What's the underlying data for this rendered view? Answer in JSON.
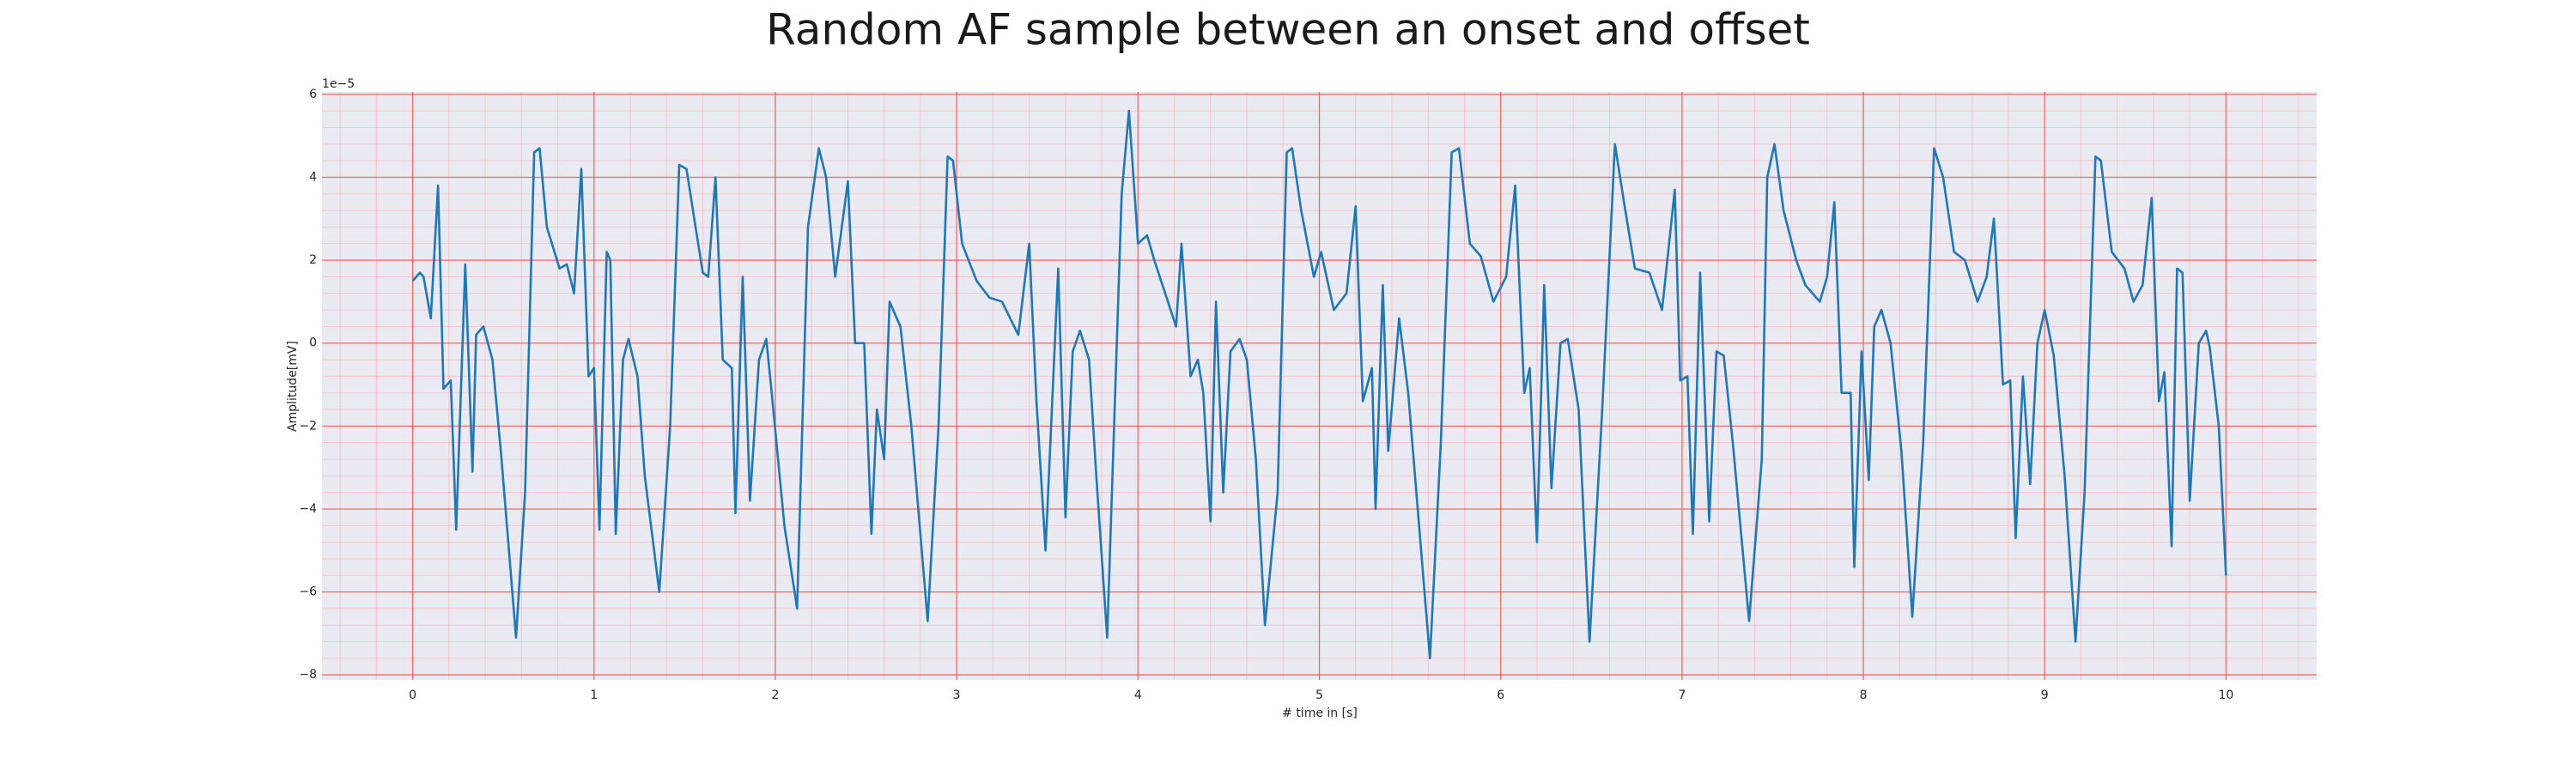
{
  "chart_data": {
    "type": "line",
    "title": "Random AF sample between an onset and offset",
    "x_label": "# time in [s]",
    "y_label": "Amplitude[mV]",
    "offset_text": "1e−5",
    "color": "#1f77b4",
    "grid": true,
    "minor_grid": true,
    "xlim": [
      -0.5,
      10.5
    ],
    "ylim": [
      -8.12,
      6.06
    ],
    "xticks": [
      0,
      1,
      2,
      3,
      4,
      5,
      6,
      7,
      8,
      9,
      10
    ],
    "yticks": [
      {
        "value": -8,
        "label": "−8"
      },
      {
        "value": -6,
        "label": "−6"
      },
      {
        "value": -4,
        "label": "−4"
      },
      {
        "value": -2,
        "label": "−2"
      },
      0,
      2,
      4,
      6
    ],
    "x": [
      0,
      0.04,
      0.06,
      0.1,
      0.14,
      0.17,
      0.21,
      0.24,
      0.29,
      0.33,
      0.35,
      0.39,
      0.44,
      0.49,
      0.57,
      0.62,
      0.67,
      0.7,
      0.74,
      0.81,
      0.85,
      0.89,
      0.93,
      0.97,
      1.0,
      1.03,
      1.07,
      1.09,
      1.12,
      1.16,
      1.19,
      1.24,
      1.28,
      1.36,
      1.42,
      1.47,
      1.51,
      1.56,
      1.6,
      1.63,
      1.67,
      1.71,
      1.76,
      1.78,
      1.82,
      1.86,
      1.91,
      1.95,
      1.98,
      2.05,
      2.12,
      2.18,
      2.24,
      2.28,
      2.33,
      2.4,
      2.44,
      2.49,
      2.53,
      2.56,
      2.6,
      2.63,
      2.69,
      2.75,
      2.84,
      2.9,
      2.95,
      2.98,
      3.03,
      3.11,
      3.18,
      3.25,
      3.34,
      3.4,
      3.44,
      3.49,
      3.56,
      3.6,
      3.64,
      3.68,
      3.73,
      3.77,
      3.83,
      3.91,
      3.95,
      4.0,
      4.05,
      4.09,
      4.15,
      4.21,
      4.24,
      4.29,
      4.33,
      4.36,
      4.4,
      4.43,
      4.47,
      4.51,
      4.56,
      4.6,
      4.65,
      4.7,
      4.77,
      4.82,
      4.85,
      4.9,
      4.97,
      5.01,
      5.08,
      5.15,
      5.2,
      5.24,
      5.29,
      5.31,
      5.35,
      5.38,
      5.44,
      5.49,
      5.55,
      5.61,
      5.67,
      5.73,
      5.77,
      5.83,
      5.89,
      5.96,
      6.03,
      6.08,
      6.13,
      6.16,
      6.2,
      6.24,
      6.28,
      6.33,
      6.37,
      6.43,
      6.49,
      6.56,
      6.63,
      6.68,
      6.74,
      6.82,
      6.89,
      6.96,
      6.99,
      7.03,
      7.06,
      7.1,
      7.15,
      7.19,
      7.23,
      7.28,
      7.37,
      7.44,
      7.47,
      7.51,
      7.56,
      7.63,
      7.68,
      7.76,
      7.8,
      7.84,
      7.88,
      7.93,
      7.95,
      7.99,
      8.03,
      8.06,
      8.1,
      8.15,
      8.21,
      8.27,
      8.33,
      8.39,
      8.44,
      8.5,
      8.56,
      8.63,
      8.68,
      8.72,
      8.77,
      8.81,
      8.84,
      8.88,
      8.92,
      8.96,
      9.0,
      9.05,
      9.11,
      9.17,
      9.22,
      9.28,
      9.31,
      9.37,
      9.44,
      9.49,
      9.54,
      9.59,
      9.63,
      9.66,
      9.7,
      9.73,
      9.76,
      9.8,
      9.85,
      9.89,
      9.91,
      9.96,
      10.0
    ],
    "values": [
      1.5,
      1.7,
      1.6,
      0.6,
      3.8,
      -1.1,
      -0.9,
      -4.5,
      1.9,
      -3.1,
      0.2,
      0.4,
      -0.4,
      -2.8,
      -7.1,
      -3.6,
      4.6,
      4.7,
      2.8,
      1.8,
      1.9,
      1.2,
      4.2,
      -0.8,
      -0.6,
      -4.5,
      2.2,
      2.0,
      -4.6,
      -0.4,
      0.1,
      -0.8,
      -3.2,
      -6.0,
      -2.0,
      4.3,
      4.2,
      2.8,
      1.7,
      1.6,
      4.0,
      -0.4,
      -0.6,
      -4.1,
      1.6,
      -3.8,
      -0.4,
      0.1,
      -1.2,
      -4.4,
      -6.4,
      2.8,
      4.7,
      4.0,
      1.6,
      3.9,
      0,
      0,
      -4.6,
      -1.6,
      -2.8,
      1.0,
      0.4,
      -2.0,
      -6.7,
      -2.0,
      4.5,
      4.4,
      2.4,
      1.5,
      1.1,
      1.0,
      0.2,
      2.4,
      -1.4,
      -5.0,
      1.8,
      -4.2,
      -0.2,
      0.3,
      -0.4,
      -3.2,
      -7.1,
      3.6,
      5.6,
      2.4,
      2.6,
      2.0,
      1.2,
      0.4,
      2.4,
      -0.8,
      -0.4,
      -1.2,
      -4.3,
      1.0,
      -3.6,
      -0.2,
      0.1,
      -0.4,
      -2.8,
      -6.8,
      -3.6,
      4.6,
      4.7,
      3.2,
      1.6,
      2.2,
      0.8,
      1.2,
      3.3,
      -1.4,
      -0.6,
      -4.0,
      1.4,
      -2.6,
      0.6,
      -1.2,
      -4.4,
      -7.6,
      -2.4,
      4.6,
      4.7,
      2.4,
      2.1,
      1.0,
      1.6,
      3.8,
      -1.2,
      -0.6,
      -4.8,
      1.4,
      -3.5,
      0,
      0.1,
      -1.6,
      -7.2,
      -1.6,
      4.8,
      3.4,
      1.8,
      1.7,
      0.8,
      3.7,
      -0.9,
      -0.8,
      -4.6,
      1.7,
      -4.3,
      -0.2,
      -0.3,
      -2.4,
      -6.7,
      -2.8,
      4.0,
      4.8,
      3.2,
      2.0,
      1.4,
      1.0,
      1.6,
      3.4,
      -1.2,
      -1.2,
      -5.4,
      -0.2,
      -3.3,
      0.4,
      0.8,
      0,
      -2.6,
      -6.6,
      -2.4,
      4.7,
      4.0,
      2.2,
      2.0,
      1.0,
      1.6,
      3.0,
      -1.0,
      -0.9,
      -4.7,
      -0.8,
      -3.4,
      0,
      0.8,
      -0.3,
      -3.2,
      -7.2,
      -3.6,
      4.5,
      4.4,
      2.2,
      1.8,
      1.0,
      1.4,
      3.5,
      -1.4,
      -0.7,
      -4.9,
      1.8,
      1.7,
      -3.8,
      0,
      0.3,
      -0.1,
      -2.0,
      -5.6
    ]
  }
}
